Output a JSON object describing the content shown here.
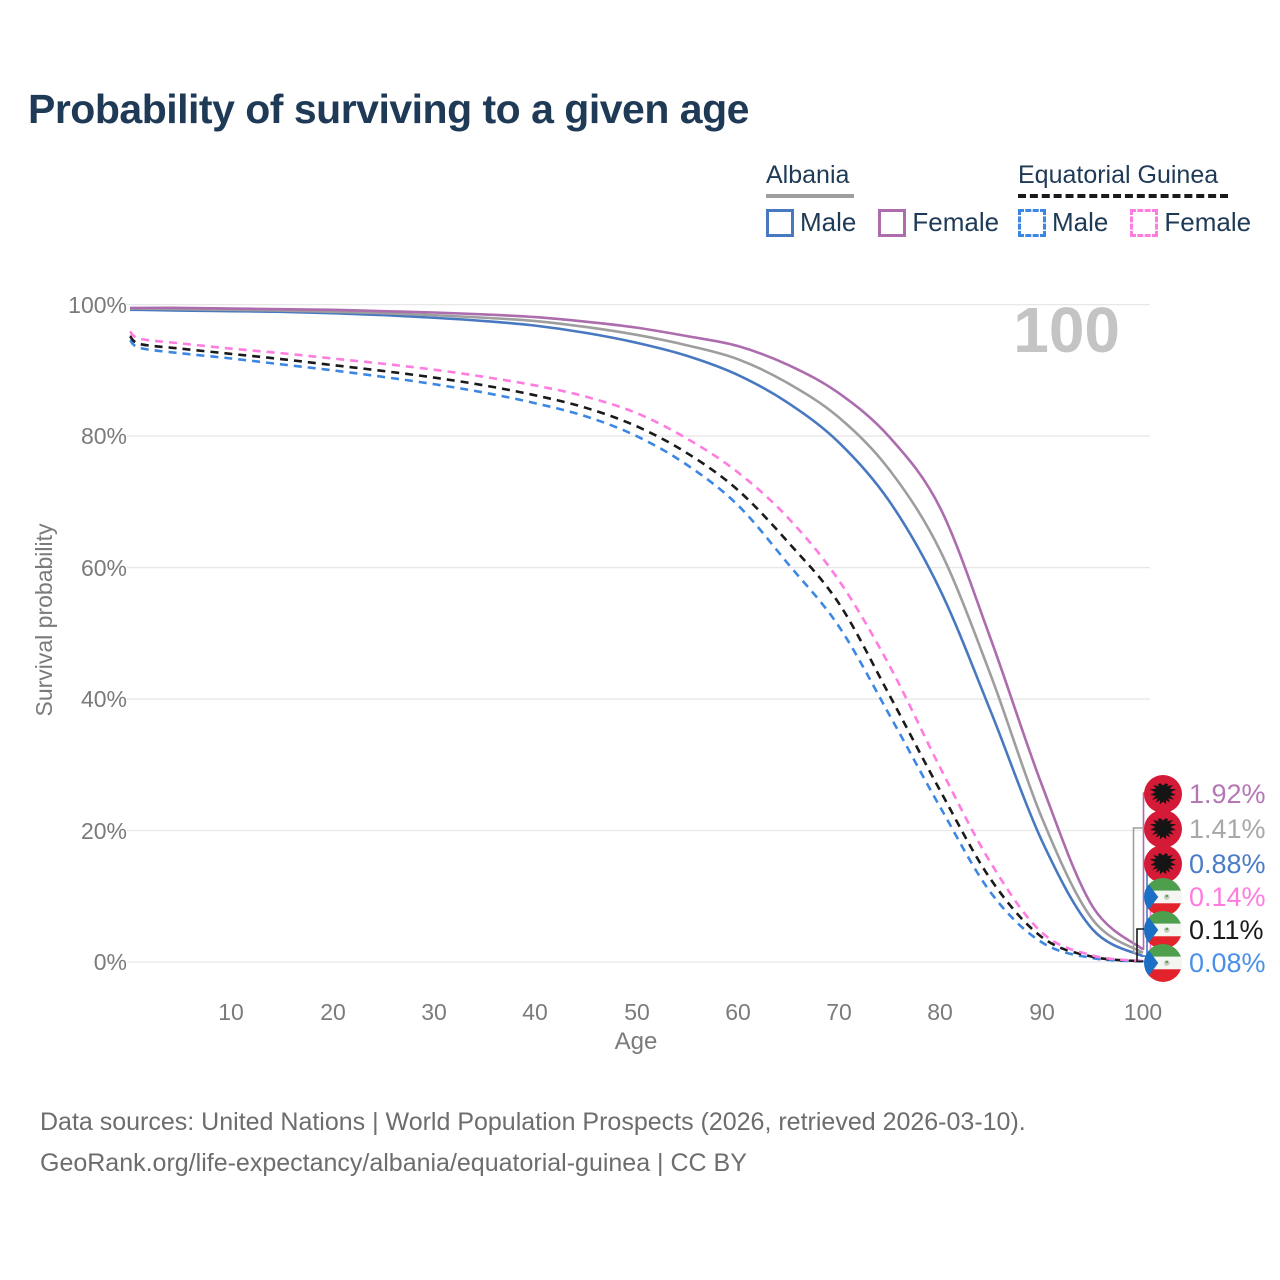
{
  "title": "Probability of surviving to a given age",
  "watermark": "100",
  "colors": {
    "grid": "#e7e7e7",
    "axis_text": "#7b7b7b",
    "title_text": "#1e3a56",
    "albania_male": "#4878c0",
    "albania_female": "#ad6cad",
    "albania_both": "#9e9e9e",
    "eq_guinea_male": "#3d87e4",
    "eq_guinea_female": "#ff7ce0",
    "eq_guinea_both": "#1a1a1a"
  },
  "legend": {
    "groups": [
      {
        "country": "Albania",
        "underline_style": "solid",
        "underline_color": "#9e9e9e",
        "items": [
          {
            "label": "Male",
            "color": "#4878c0",
            "dashed": false
          },
          {
            "label": "Female",
            "color": "#ad6cad",
            "dashed": false
          }
        ]
      },
      {
        "country": "Equatorial Guinea",
        "underline_style": "dashed",
        "underline_color": "#1a1a1a",
        "items": [
          {
            "label": "Male",
            "color": "#3d87e4",
            "dashed": true
          },
          {
            "label": "Female",
            "color": "#ff7ce0",
            "dashed": true
          }
        ]
      }
    ]
  },
  "axes": {
    "y": {
      "label": "Survival probability",
      "tick_labels": [
        "100%",
        "80%",
        "60%",
        "40%",
        "20%",
        "0%"
      ]
    },
    "x": {
      "label": "Age",
      "tick_labels": [
        "10",
        "20",
        "30",
        "40",
        "50",
        "60",
        "70",
        "80",
        "90",
        "100"
      ]
    }
  },
  "end_labels": [
    {
      "flag": "albania",
      "value": "1.92%",
      "color": "#b577b5"
    },
    {
      "flag": "albania",
      "value": "1.41%",
      "color": "#a8a8a8"
    },
    {
      "flag": "albania",
      "value": "0.88%",
      "color": "#4a7cc7"
    },
    {
      "flag": "equatorial-guinea",
      "value": "0.14%",
      "color": "#ff7be0"
    },
    {
      "flag": "equatorial-guinea",
      "value": "0.11%",
      "color": "#1a1a1a"
    },
    {
      "flag": "equatorial-guinea",
      "value": "0.08%",
      "color": "#4a90e8"
    }
  ],
  "footer": {
    "line1": "Data sources: United Nations | World Population Prospects (2026, retrieved 2026-03-10).",
    "line2": "GeoRank.org/life-expectancy/albania/equatorial-guinea | CC BY"
  },
  "chart_data": {
    "type": "line",
    "title": "Probability of surviving to a given age",
    "xlabel": "Age",
    "ylabel": "Survival probability",
    "xlim": [
      0,
      100
    ],
    "ylim": [
      0,
      100
    ],
    "grid": "horizontal",
    "y_gridlines": [
      0,
      20,
      40,
      60,
      80,
      100
    ],
    "x_ticks": [
      10,
      20,
      30,
      40,
      50,
      60,
      70,
      80,
      90,
      100
    ],
    "legend_position": "top-right",
    "x": [
      0,
      1,
      5,
      10,
      15,
      20,
      25,
      30,
      35,
      40,
      45,
      50,
      55,
      60,
      65,
      70,
      75,
      80,
      85,
      90,
      95,
      100
    ],
    "series": [
      {
        "id": "albania-female",
        "name": "Albania — Female",
        "country": "Albania",
        "sex": "Female",
        "color": "#ad6cad",
        "line_style": "solid",
        "end_label": "1.92%",
        "values": [
          99.5,
          99.5,
          99.5,
          99.4,
          99.3,
          99.2,
          99.0,
          98.8,
          98.5,
          98.1,
          97.4,
          96.5,
          95.2,
          93.7,
          90.8,
          86.5,
          79.8,
          69.0,
          49.0,
          27.0,
          8.5,
          1.92
        ]
      },
      {
        "id": "albania-both",
        "name": "Albania — Both sexes",
        "country": "Albania",
        "sex": "Both sexes",
        "color": "#9e9e9e",
        "line_style": "solid",
        "end_label": "1.41%",
        "values": [
          99.4,
          99.4,
          99.3,
          99.2,
          99.1,
          98.9,
          98.7,
          98.4,
          98.0,
          97.5,
          96.6,
          95.4,
          93.8,
          91.7,
          88.0,
          82.8,
          74.8,
          62.5,
          43.5,
          22.0,
          6.5,
          1.41
        ]
      },
      {
        "id": "albania-male",
        "name": "Albania — Male",
        "country": "Albania",
        "sex": "Male",
        "color": "#4878c0",
        "line_style": "solid",
        "end_label": "0.88%",
        "values": [
          99.2,
          99.2,
          99.1,
          99.0,
          98.9,
          98.7,
          98.4,
          98.0,
          97.5,
          96.8,
          95.7,
          94.2,
          92.2,
          89.3,
          85.0,
          79.0,
          70.0,
          56.5,
          38.0,
          18.5,
          5.0,
          0.88
        ]
      },
      {
        "id": "eq-guinea-female",
        "name": "Equatorial Guinea — Female",
        "country": "Equatorial Guinea",
        "sex": "Female",
        "color": "#ff7ce0",
        "line_style": "dashed",
        "end_label": "0.14%",
        "values": [
          95.9,
          94.8,
          94.1,
          93.3,
          92.6,
          91.8,
          91.0,
          90.1,
          89.0,
          87.7,
          86.0,
          83.5,
          79.6,
          74.5,
          67.5,
          58.0,
          45.0,
          29.5,
          15.0,
          4.5,
          1.0,
          0.14
        ]
      },
      {
        "id": "eq-guinea-both",
        "name": "Equatorial Guinea — Both sexes",
        "country": "Equatorial Guinea",
        "sex": "Both sexes",
        "color": "#1a1a1a",
        "line_style": "dashed",
        "end_label": "0.11%",
        "values": [
          95.2,
          94.0,
          93.3,
          92.5,
          91.7,
          90.8,
          89.9,
          88.9,
          87.7,
          86.2,
          84.3,
          81.5,
          77.4,
          71.8,
          63.8,
          54.5,
          40.5,
          26.0,
          12.5,
          3.8,
          0.8,
          0.11
        ]
      },
      {
        "id": "eq-guinea-male",
        "name": "Equatorial Guinea — Male",
        "country": "Equatorial Guinea",
        "sex": "Male",
        "color": "#3d87e4",
        "line_style": "dashed",
        "end_label": "0.08%",
        "values": [
          94.6,
          93.4,
          92.6,
          91.8,
          90.9,
          90.0,
          89.0,
          87.9,
          86.6,
          85.0,
          83.0,
          80.0,
          75.6,
          69.5,
          60.5,
          51.0,
          37.5,
          23.5,
          10.5,
          3.0,
          0.6,
          0.08
        ]
      }
    ]
  }
}
